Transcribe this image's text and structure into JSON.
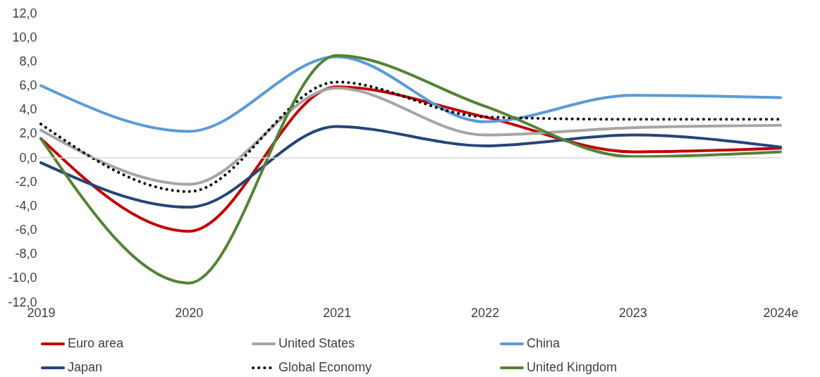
{
  "chart_data": {
    "type": "line",
    "categories": [
      "2019",
      "2020",
      "2021",
      "2022",
      "2023",
      "2024e"
    ],
    "series": [
      {
        "name": "Euro area",
        "color": "#c00000",
        "values": [
          1.6,
          -6.1,
          5.9,
          3.4,
          0.5,
          0.8
        ]
      },
      {
        "name": "United States",
        "color": "#a5a5a5",
        "values": [
          2.3,
          -2.2,
          5.8,
          1.9,
          2.5,
          2.7
        ]
      },
      {
        "name": "China",
        "color": "#5b9bd5",
        "values": [
          6.0,
          2.2,
          8.4,
          3.0,
          5.2,
          5.0
        ]
      },
      {
        "name": "Japan",
        "color": "#264478",
        "values": [
          -0.4,
          -4.1,
          2.6,
          1.0,
          1.9,
          0.9
        ]
      },
      {
        "name": "Global Economy",
        "color": "#000000",
        "line_style": "dotted",
        "values": [
          2.8,
          -2.8,
          6.3,
          3.4,
          3.2,
          3.2
        ]
      },
      {
        "name": "United Kingdom",
        "color": "#548235",
        "values": [
          1.6,
          -10.4,
          8.5,
          4.3,
          0.1,
          0.5
        ]
      }
    ],
    "ylim": [
      -12,
      12
    ],
    "yticks": [
      {
        "value": -12,
        "label": "-12,0"
      },
      {
        "value": -10,
        "label": "-10,0"
      },
      {
        "value": -8,
        "label": "-8,0"
      },
      {
        "value": -6,
        "label": "-6,0"
      },
      {
        "value": -4,
        "label": "-4,0"
      },
      {
        "value": -2,
        "label": "-2,0"
      },
      {
        "value": 0,
        "label": "0,0"
      },
      {
        "value": 2,
        "label": "2,0"
      },
      {
        "value": 4,
        "label": "4,0"
      },
      {
        "value": 6,
        "label": "6,0"
      },
      {
        "value": 8,
        "label": "8,0"
      },
      {
        "value": 10,
        "label": "10,0"
      },
      {
        "value": 12,
        "label": "12,0"
      }
    ],
    "ref_lines": [
      {
        "axis": "y",
        "value": 0,
        "color": "#d9d9d9"
      }
    ],
    "grid": false,
    "legend": "bottom",
    "marker": "none",
    "line_style": "solid"
  }
}
